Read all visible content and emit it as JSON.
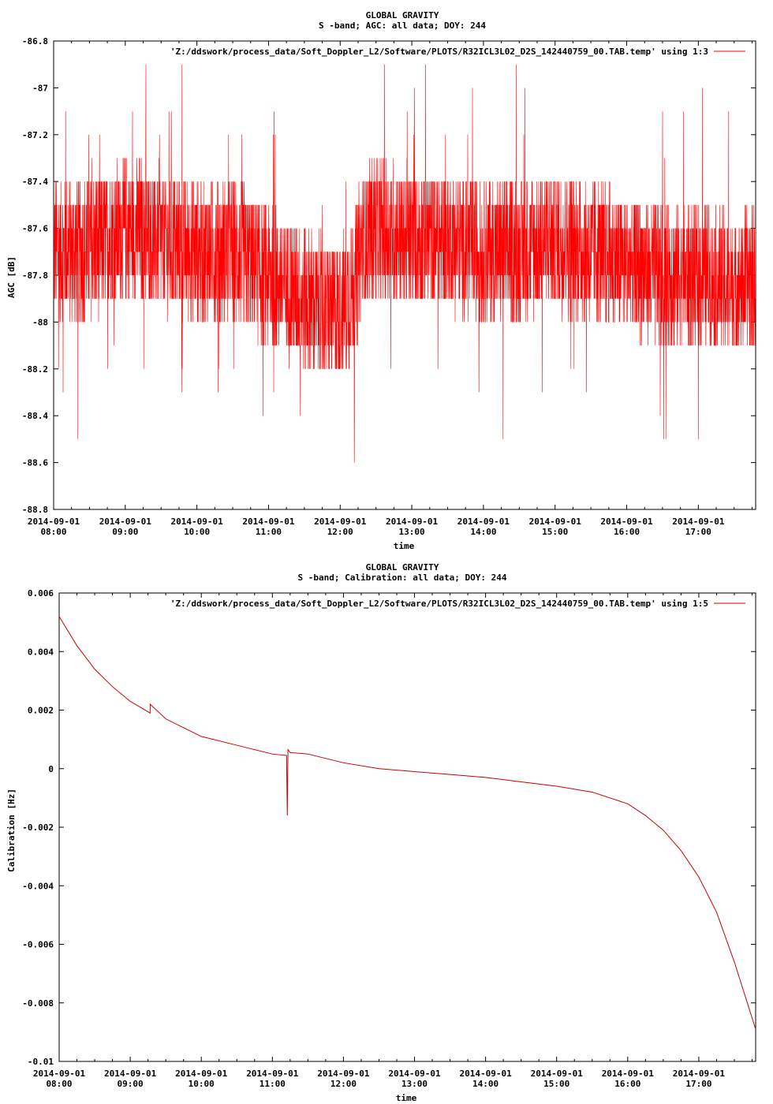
{
  "chart_data": [
    {
      "type": "line",
      "title": "GLOBAL GRAVITY",
      "subtitle": "S -band; AGC: all data; DOY: 244",
      "xlabel": "time",
      "ylabel": "AGC [dB]",
      "ylim": [
        -88.8,
        -86.8
      ],
      "yticks": [
        "-86.8",
        "-87",
        "-87.2",
        "-87.4",
        "-87.6",
        "-87.8",
        "-88",
        "-88.2",
        "-88.4",
        "-88.6",
        "-88.8"
      ],
      "ytick_values": [
        -86.8,
        -87.0,
        -87.2,
        -87.4,
        -87.6,
        -87.8,
        -88.0,
        -88.2,
        -88.4,
        -88.6,
        -88.8
      ],
      "xlim_hours": [
        8.0,
        17.8
      ],
      "xticks_date": "2014-09-01",
      "xticks_time": [
        "08:00",
        "09:00",
        "10:00",
        "11:00",
        "12:00",
        "13:00",
        "14:00",
        "15:00",
        "16:00",
        "17:00"
      ],
      "legend": "'Z:/ddswork/process_data/Soft_Doppler_L2/Software/PLOTS/R32ICL3L02_D2S_142440759_00.TAB.temp' using 1:3",
      "grid": false,
      "legend_position": "top-right",
      "series": [
        {
          "color": "#ff0000",
          "x": [
            8.0,
            8.5,
            9.0,
            9.5,
            10.0,
            10.5,
            11.0,
            11.5,
            11.75,
            12.0,
            12.2,
            12.3,
            12.5,
            13.0,
            13.5,
            14.0,
            14.5,
            15.0,
            15.5,
            16.0,
            16.5,
            17.0,
            17.5,
            17.8
          ],
          "values": [
            -87.7,
            -87.7,
            -87.6,
            -87.65,
            -87.7,
            -87.7,
            -87.8,
            -87.9,
            -87.95,
            -87.95,
            -87.85,
            -87.65,
            -87.6,
            -87.65,
            -87.65,
            -87.7,
            -87.7,
            -87.65,
            -87.7,
            -87.75,
            -87.8,
            -87.8,
            -87.85,
            -87.8
          ],
          "noise_amplitude": 0.3,
          "spike_min": -88.7,
          "spike_max": -86.9
        }
      ]
    },
    {
      "type": "line",
      "title": "GLOBAL GRAVITY",
      "subtitle": "S -band; Calibration: all data; DOY: 244",
      "xlabel": "time",
      "ylabel": "Calibration [Hz]",
      "ylim": [
        -0.01,
        0.006
      ],
      "yticks": [
        "0.006",
        "0.004",
        "0.002",
        "0",
        "-0.002",
        "-0.004",
        "-0.006",
        "-0.008",
        "-0.01"
      ],
      "ytick_values": [
        0.006,
        0.004,
        0.002,
        0.0,
        -0.002,
        -0.004,
        -0.006,
        -0.008,
        -0.01
      ],
      "xlim_hours": [
        8.0,
        17.8
      ],
      "xticks_date": "2014-09-01",
      "xticks_time": [
        "08:00",
        "09:00",
        "10:00",
        "11:00",
        "12:00",
        "13:00",
        "14:00",
        "15:00",
        "16:00",
        "17:00"
      ],
      "legend": "'Z:/ddswork/process_data/Soft_Doppler_L2/Software/PLOTS/R32ICL3L02_D2S_142440759_00.TAB.temp' using 1:5",
      "grid": false,
      "legend_position": "top-right",
      "series": [
        {
          "color": "#cc0000",
          "x": [
            8.0,
            8.25,
            8.5,
            8.75,
            9.0,
            9.28,
            9.281,
            9.5,
            10.0,
            10.5,
            11.0,
            11.2,
            11.21,
            11.22,
            11.25,
            11.5,
            12.0,
            12.5,
            13.0,
            13.5,
            14.0,
            14.5,
            15.0,
            15.5,
            16.0,
            16.25,
            16.5,
            16.75,
            17.0,
            17.25,
            17.5,
            17.8
          ],
          "values": [
            0.0052,
            0.0042,
            0.0034,
            0.0028,
            0.0023,
            0.0019,
            0.0022,
            0.0017,
            0.0011,
            0.0008,
            0.0005,
            0.00045,
            -0.0016,
            0.00065,
            0.00055,
            0.0005,
            0.0002,
            0.0,
            -0.0001,
            -0.0002,
            -0.0003,
            -0.00045,
            -0.0006,
            -0.0008,
            -0.0012,
            -0.0016,
            -0.0021,
            -0.0028,
            -0.0037,
            -0.0049,
            -0.0066,
            -0.0089
          ]
        }
      ]
    }
  ]
}
